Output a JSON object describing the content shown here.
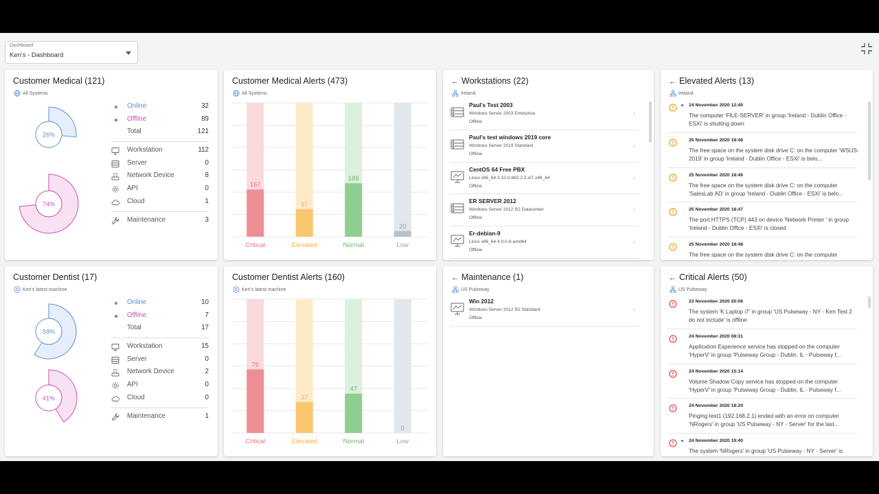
{
  "dashboard_selector": {
    "label": "Dashboard",
    "value": "Ken's - Dashboard"
  },
  "colors": {
    "online": "#5b8fd6",
    "offline": "#c94fb1",
    "critical": "#ee8f95",
    "elevated": "#fbc76e",
    "normal": "#8fce91",
    "low": "#b6c1c9",
    "link": "#2f6ec1"
  },
  "customer_medical": {
    "title": "Customer Medical (121)",
    "subtitle": "All Systems",
    "online_label": "Online",
    "online_value": "32",
    "online_pct": "26%",
    "offline_label": "Offline",
    "offline_value": "89",
    "offline_pct": "74%",
    "total_label": "Total",
    "total_value": "121",
    "workstation_label": "Workstation",
    "workstation_value": "112",
    "server_label": "Server",
    "server_value": "0",
    "network_label": "Network Device",
    "network_value": "8",
    "api_label": "API",
    "api_value": "0",
    "cloud_label": "Cloud",
    "cloud_value": "1",
    "maintenance_label": "Maintenance",
    "maintenance_value": "3"
  },
  "customer_dentist": {
    "title": "Customer Dentist (17)",
    "subtitle": "Ken's latest machine",
    "online_label": "Online",
    "online_value": "10",
    "online_pct": "59%",
    "offline_label": "Offline",
    "offline_value": "7",
    "offline_pct": "41%",
    "total_label": "Total",
    "total_value": "17",
    "workstation_label": "Workstation",
    "workstation_value": "15",
    "server_label": "Server",
    "server_value": "0",
    "network_label": "Network Device",
    "network_value": "2",
    "api_label": "API",
    "api_value": "0",
    "cloud_label": "Cloud",
    "cloud_value": "0",
    "maintenance_label": "Maintenance",
    "maintenance_value": "1"
  },
  "medical_alerts": {
    "title": "Customer Medical Alerts (473)",
    "subtitle": "All Systems"
  },
  "dentist_alerts": {
    "title": "Customer Dentist Alerts (160)",
    "subtitle": "Ken's latest machine"
  },
  "chart_data": [
    {
      "type": "bar",
      "title": "Customer Medical Alerts (473)",
      "categories": [
        "Critical",
        "Elevated",
        "Normal",
        "Low"
      ],
      "values": [
        167,
        97,
        189,
        20
      ],
      "ylim": [
        0,
        473
      ]
    },
    {
      "type": "bar",
      "title": "Customer Dentist Alerts (160)",
      "categories": [
        "Critical",
        "Elevated",
        "Normal",
        "Low"
      ],
      "values": [
        76,
        37,
        47,
        0
      ],
      "ylim": [
        0,
        160
      ]
    }
  ],
  "workstations": {
    "title": "Workstations (22)",
    "subtitle": "Ireland",
    "items": [
      {
        "name": "Paul's Test 2003",
        "os": "Windows Server 2003 Enterprise",
        "status": "Offline",
        "icon": "server-icon"
      },
      {
        "name": "Paul's test windows 2019 core",
        "os": "Windows Server 2019 Standard",
        "status": "Offline",
        "icon": "server-icon"
      },
      {
        "name": "CentOS 64 Free PBX",
        "os": "Linux x86_64 3.10.0-862.2.3.el7.x86_64",
        "status": "Offline",
        "icon": "monitor-icon"
      },
      {
        "name": "ER SERVER 2012",
        "os": "Windows Server 2012 R2 Datacenter",
        "status": "Offline",
        "icon": "server-icon"
      },
      {
        "name": "Er-debian-9",
        "os": "Linux x86_64 4.9.0-8-amd64",
        "status": "Offline",
        "icon": "monitor-icon"
      }
    ]
  },
  "maintenance": {
    "title": "Maintenance (1)",
    "subtitle": "US Pulseway",
    "items": [
      {
        "name": "Win 2012",
        "os": "Windows Server 2012 R2 Standard",
        "status": "Offline",
        "icon": "monitor-icon"
      }
    ]
  },
  "elevated_alerts": {
    "title": "Elevated Alerts (13)",
    "subtitle": "Ireland",
    "items": [
      {
        "date": "24 November 2020 12:40",
        "text": "The computer 'FILE-SERVER' in group 'Ireland - Dublin Office - ESXi' is shutting down",
        "unread": true
      },
      {
        "date": "25 November 2020 18:46",
        "text": "The free space on the system disk drive C: on the computer 'WSUS-2019' in group 'Ireland - Dublin Office - ESXi' is belo...",
        "unread": false
      },
      {
        "date": "25 November 2020 18:46",
        "text": "The free space on the system disk drive C: on the computer 'SalesLab AD' in group 'Ireland - Dublin Office - ESXi' is belo...",
        "unread": false
      },
      {
        "date": "25 November 2020 18:47",
        "text": "The port HTTPS (TCP) 443 on device 'Network Printer ' in group 'Ireland - Dublin Office - ESXi' is closed",
        "unread": false
      },
      {
        "date": "25 November 2020 18:48",
        "text": "The free space on the system disk drive C: on the computer",
        "unread": false
      }
    ]
  },
  "critical_alerts": {
    "title": "Critical Alerts (50)",
    "subtitle": "US Pulseway",
    "items": [
      {
        "date": "23 November 2020 20:06",
        "text": "The system 'K Laptop i7' in group 'US Pulseway - NY - Ken Test 2 do not include' is offline",
        "unread": false
      },
      {
        "date": "24 November 2020 08:31",
        "text": "Application Experience service has stopped on the computer 'HyperV' in group 'Pulseway Group - Dublin, IL - Pulseway f...",
        "unread": false
      },
      {
        "date": "24 November 2020 15:14",
        "text": "Volume Shadow Copy service has stopped on the computer 'HyperV' in group 'Pulseway Group - Dublin, IL - Pulseway f...",
        "unread": false
      },
      {
        "date": "24 November 2020 18:20",
        "text": "Pinging test1 (192.168.2.1) ended with an error on computer 'NRogers' in group 'US Pulseway - NY - Server' for the last...",
        "unread": false
      },
      {
        "date": "24 November 2020 19:40",
        "text": "The system 'NRogers' in group 'US Pulseway - NY - Server' is",
        "unread": true
      }
    ]
  }
}
